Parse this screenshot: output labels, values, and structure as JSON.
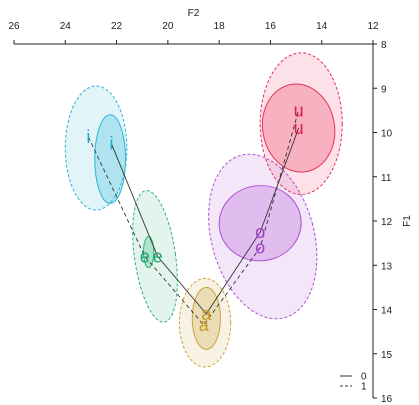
{
  "chart_data": {
    "type": "scatter",
    "title": "",
    "xlabel": "F2",
    "ylabel": "F1",
    "xlim": [
      26,
      12
    ],
    "ylim": [
      8,
      16
    ],
    "x_axis_position": "top",
    "y_axis_position": "right",
    "x_reversed": true,
    "y_reversed": true,
    "x_ticks": [
      26,
      24,
      22,
      20,
      18,
      16,
      14,
      12
    ],
    "y_ticks": [
      8,
      9,
      10,
      11,
      12,
      13,
      14,
      15,
      16
    ],
    "grid": false,
    "legend_position": "bottom-right",
    "legend": [
      {
        "label": "0",
        "line_style": "solid"
      },
      {
        "label": "1",
        "line_style": "dashed"
      }
    ],
    "series": [
      {
        "name": "0",
        "line_style": "solid",
        "order": [
          "i",
          "e",
          "a",
          "o",
          "u"
        ],
        "points": [
          {
            "vowel": "i",
            "F2": 22.2,
            "F1": 10.25
          },
          {
            "vowel": "e",
            "F2": 20.4,
            "F1": 12.8
          },
          {
            "vowel": "a",
            "F2": 18.5,
            "F1": 14.1
          },
          {
            "vowel": "o",
            "F2": 16.4,
            "F1": 12.25
          },
          {
            "vowel": "u",
            "F2": 14.9,
            "F1": 9.9
          }
        ]
      },
      {
        "name": "1",
        "line_style": "dashed",
        "order": [
          "i",
          "e",
          "a",
          "o",
          "u"
        ],
        "points": [
          {
            "vowel": "i",
            "F2": 23.1,
            "F1": 10.1
          },
          {
            "vowel": "e",
            "F2": 20.9,
            "F1": 12.8
          },
          {
            "vowel": "a",
            "F2": 18.6,
            "F1": 14.35
          },
          {
            "vowel": "o",
            "F2": 16.4,
            "F1": 12.6
          },
          {
            "vowel": "u",
            "F2": 14.9,
            "F1": 9.5
          }
        ]
      }
    ],
    "ellipses": [
      {
        "vowel": "i",
        "group": "1",
        "cx": 22.8,
        "cy": 10.35,
        "rx": 1.2,
        "ry": 1.4,
        "angle_deg": 0,
        "color": "#2bb5d8"
      },
      {
        "vowel": "i",
        "group": "0",
        "cx": 22.25,
        "cy": 10.6,
        "rx": 0.6,
        "ry": 1.0,
        "angle_deg": 0,
        "color": "#2bb5d8"
      },
      {
        "vowel": "e",
        "group": "1",
        "cx": 20.5,
        "cy": 12.8,
        "rx": 0.8,
        "ry": 1.5,
        "angle_deg": -8,
        "color": "#2fb27a"
      },
      {
        "vowel": "e",
        "group": "0",
        "cx": 20.75,
        "cy": 12.7,
        "rx": 0.2,
        "ry": 0.35,
        "angle_deg": 0,
        "color": "#2fb27a"
      },
      {
        "vowel": "a",
        "group": "1",
        "cx": 18.55,
        "cy": 14.3,
        "rx": 1.0,
        "ry": 1.0,
        "angle_deg": 0,
        "color": "#c9a53a"
      },
      {
        "vowel": "a",
        "group": "0",
        "cx": 18.5,
        "cy": 14.2,
        "rx": 0.55,
        "ry": 0.7,
        "angle_deg": 0,
        "color": "#c9a53a"
      },
      {
        "vowel": "o",
        "group": "1",
        "cx": 16.3,
        "cy": 12.35,
        "rx": 2.0,
        "ry": 1.9,
        "angle_deg": -15,
        "color": "#b14fd6"
      },
      {
        "vowel": "o",
        "group": "0",
        "cx": 16.4,
        "cy": 12.05,
        "rx": 1.6,
        "ry": 0.85,
        "angle_deg": -5,
        "color": "#b14fd6"
      },
      {
        "vowel": "u",
        "group": "1",
        "cx": 14.8,
        "cy": 9.8,
        "rx": 1.6,
        "ry": 1.6,
        "angle_deg": 0,
        "color": "#e8315a"
      },
      {
        "vowel": "u",
        "group": "0",
        "cx": 14.9,
        "cy": 9.9,
        "rx": 1.4,
        "ry": 1.0,
        "angle_deg": -10,
        "color": "#e8315a"
      }
    ],
    "vowel_colors": {
      "i": "#1aa7d1",
      "e": "#17a66b",
      "a": "#c19a1f",
      "o": "#a53ed1",
      "u": "#e0194a"
    }
  }
}
